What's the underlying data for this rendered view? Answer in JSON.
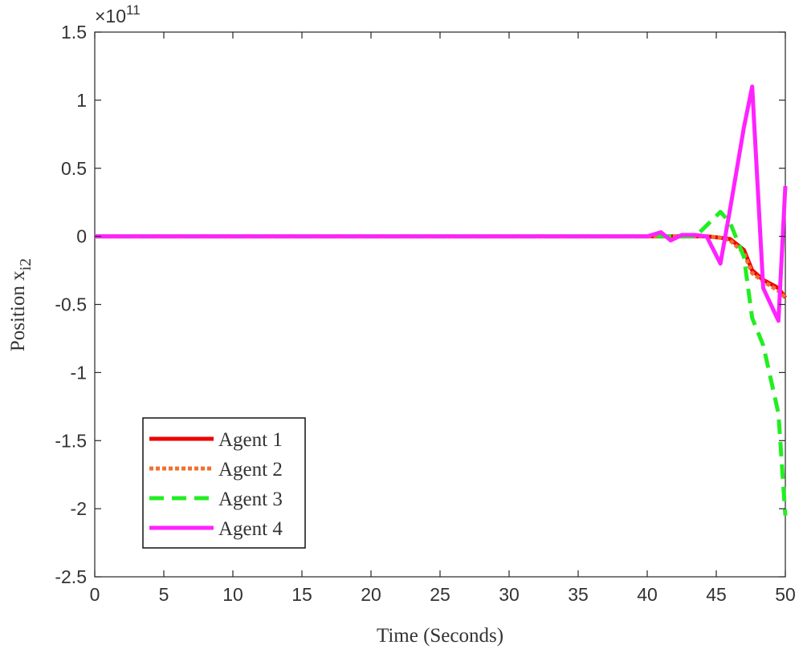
{
  "chart_data": {
    "type": "line",
    "xlabel": "Time (Seconds)",
    "ylabel": "Position x",
    "ylabel_subscript": "i2",
    "y_multiplier": "×10",
    "y_multiplier_exponent": "11",
    "x": [
      0,
      35,
      38,
      40,
      41,
      41.7,
      42.5,
      43.5,
      44.3,
      45.3,
      46,
      47,
      47.6,
      48.4,
      49.5,
      50
    ],
    "series": [
      {
        "name": "Agent 1",
        "color": "#ee0000",
        "dash": "solid",
        "values": [
          0,
          0,
          0,
          0,
          0,
          0,
          0,
          0,
          0,
          -0.01,
          -0.02,
          -0.1,
          -0.25,
          -0.32,
          -0.38,
          -0.45
        ]
      },
      {
        "name": "Agent 2",
        "color": "#f07030",
        "dash": "dotted",
        "values": [
          0,
          0,
          0,
          0,
          0,
          0,
          0,
          0,
          0,
          -0.01,
          -0.03,
          -0.12,
          -0.27,
          -0.33,
          -0.4,
          -0.45
        ]
      },
      {
        "name": "Agent 3",
        "color": "#22ee22",
        "dash": "dashed",
        "values": [
          0,
          0,
          0,
          0,
          0,
          0,
          0,
          0,
          0.08,
          0.18,
          0.1,
          -0.15,
          -0.6,
          -0.8,
          -1.3,
          -2.05
        ]
      },
      {
        "name": "Agent 4",
        "color": "#ff22ff",
        "dash": "solid",
        "values": [
          0,
          0,
          0,
          0,
          0.03,
          -0.03,
          0.01,
          0.01,
          0,
          -0.2,
          0.2,
          0.8,
          1.1,
          -0.38,
          -0.62,
          0.37
        ]
      }
    ],
    "xlim": [
      0,
      50
    ],
    "xticks": [
      0,
      5,
      10,
      15,
      20,
      25,
      30,
      35,
      40,
      45,
      50
    ],
    "ylim": [
      -2.5,
      1.5
    ],
    "yticks": [
      -2.5,
      -2,
      -1.5,
      -1,
      -0.5,
      0,
      0.5,
      1,
      1.5
    ],
    "legend": "lower-left"
  }
}
